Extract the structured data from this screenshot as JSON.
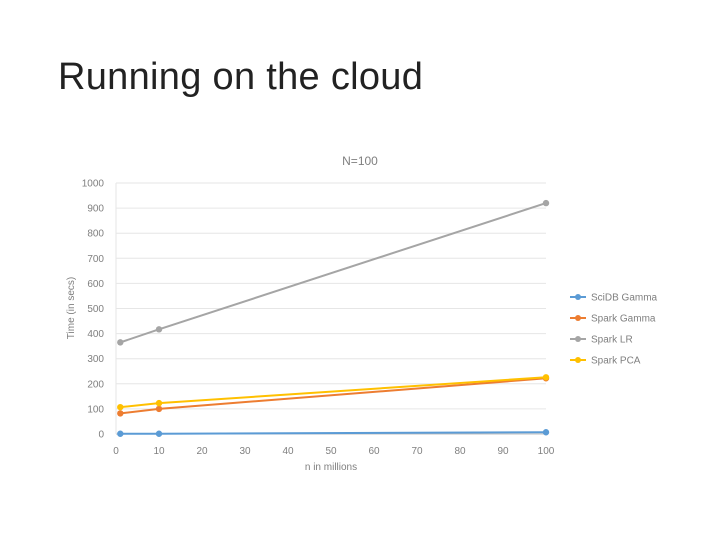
{
  "slide": {
    "title": "Running on the cloud"
  },
  "chart_data": {
    "type": "line",
    "title": "N=100",
    "xlabel": "n in millions",
    "ylabel": "Time (in secs)",
    "xlim": [
      0,
      100
    ],
    "ylim": [
      0,
      1000
    ],
    "x_ticks": [
      0,
      10,
      20,
      30,
      40,
      50,
      60,
      70,
      80,
      90,
      100
    ],
    "y_ticks": [
      0,
      100,
      200,
      300,
      400,
      500,
      600,
      700,
      800,
      900,
      1000
    ],
    "grid": true,
    "legend_position": "right",
    "series": [
      {
        "name": "SciDB Gamma",
        "color": "#5b9bd5",
        "x": [
          1,
          10,
          100
        ],
        "y": [
          1,
          1,
          7
        ]
      },
      {
        "name": "Spark Gamma",
        "color": "#ed7d31",
        "x": [
          1,
          10,
          100
        ],
        "y": [
          82,
          100,
          222
        ]
      },
      {
        "name": "Spark LR",
        "color": "#a5a5a5",
        "x": [
          1,
          10,
          100
        ],
        "y": [
          365,
          417,
          920
        ]
      },
      {
        "name": "Spark PCA",
        "color": "#ffc000",
        "x": [
          1,
          10,
          100
        ],
        "y": [
          107,
          123,
          226
        ]
      }
    ]
  }
}
